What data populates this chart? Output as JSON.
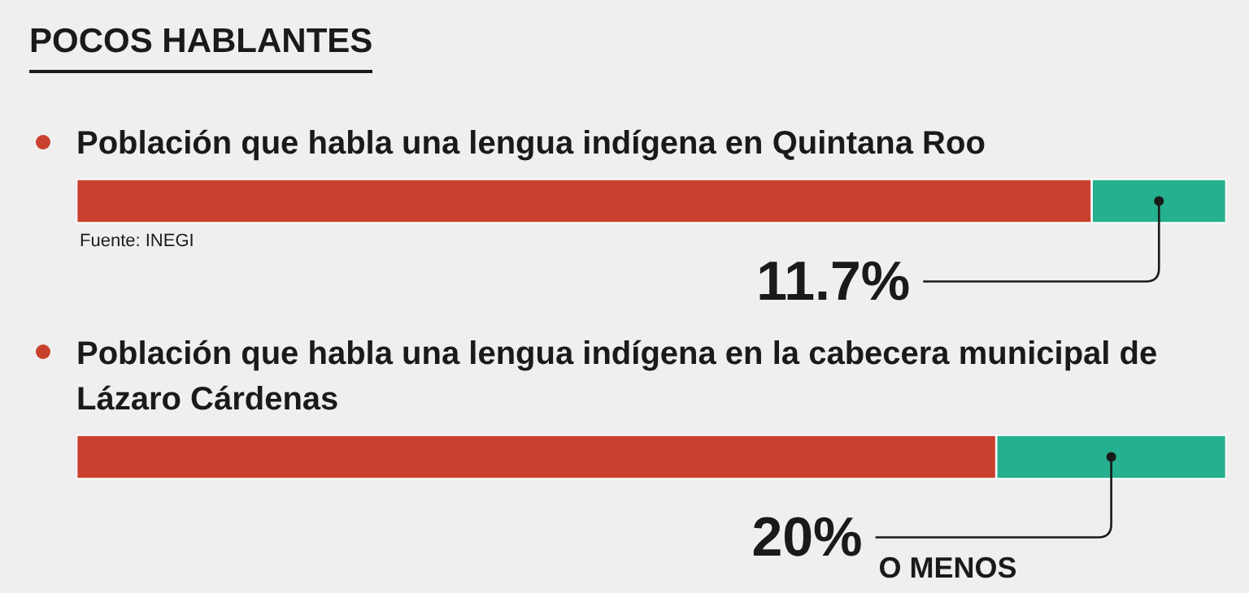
{
  "chart_data": {
    "type": "bar",
    "orientation": "horizontal",
    "stacked": true,
    "title": "POCOS HABLANTES",
    "categories": [
      "Población que habla una lengua indígena en Quintana Roo",
      "Población que habla una lengua indígena en la cabecera municipal de Lázaro Cárdenas"
    ],
    "series": [
      {
        "color": "#c9412e",
        "values": [
          88.3,
          80
        ]
      },
      {
        "color": "#25b08f",
        "values": [
          11.7,
          20
        ],
        "value_labels": [
          "11.7%",
          "20%"
        ]
      }
    ],
    "xlim": [
      0,
      100
    ],
    "tick_labels": false,
    "legend": false,
    "annotations": [
      "Fuente: INEGI",
      "O MENOS"
    ]
  }
}
